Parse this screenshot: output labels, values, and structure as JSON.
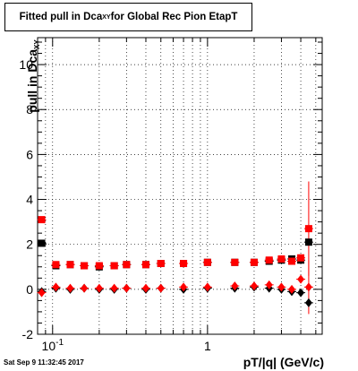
{
  "chart_data": {
    "type": "scatter",
    "title_main": "Fitted pull in Dca",
    "title_sub": "XY",
    "title_rest": " for Global Rec Pion EtapT",
    "ylabel_main": "pull in Dca",
    "ylabel_sub": "XY",
    "xlabel": "pT/|q| (GeV/c)",
    "x_scale": "log",
    "xlim": [
      0.08,
      5.5
    ],
    "ylim": [
      -2,
      11.2
    ],
    "x_tick_labels": [
      {
        "value": 0.1,
        "label": "10",
        "sup": "-1"
      },
      {
        "value": 1,
        "label": "1",
        "sup": ""
      }
    ],
    "y_tick_labels": [
      -2,
      0,
      2,
      4,
      6,
      8,
      10
    ],
    "grid": true,
    "series": [
      {
        "marker": "square",
        "color": "#000000",
        "x": [
          0.085,
          0.105,
          0.13,
          0.16,
          0.2,
          0.25,
          0.3,
          0.4,
          0.5,
          0.7,
          1.0,
          1.5,
          2.0,
          2.5,
          3.0,
          3.5,
          4.0,
          4.5
        ],
        "y": [
          2.05,
          1.05,
          1.1,
          1.05,
          1.0,
          1.05,
          1.1,
          1.1,
          1.15,
          1.15,
          1.2,
          1.2,
          1.2,
          1.25,
          1.3,
          1.35,
          1.3,
          2.1
        ]
      },
      {
        "marker": "square",
        "color": "#ff0000",
        "x": [
          0.085,
          0.105,
          0.13,
          0.16,
          0.2,
          0.25,
          0.3,
          0.4,
          0.5,
          0.7,
          1.0,
          1.5,
          2.0,
          2.5,
          3.0,
          3.5,
          4.0,
          4.5
        ],
        "y": [
          3.1,
          1.1,
          1.1,
          1.05,
          1.05,
          1.05,
          1.1,
          1.1,
          1.15,
          1.15,
          1.2,
          1.2,
          1.2,
          1.3,
          1.35,
          1.25,
          1.4,
          2.7
        ]
      },
      {
        "marker": "diamond",
        "color": "#000000",
        "x": [
          0.085,
          0.105,
          0.13,
          0.16,
          0.2,
          0.25,
          0.3,
          0.4,
          0.5,
          0.7,
          1.0,
          1.5,
          2.0,
          2.5,
          3.0,
          3.5,
          4.0,
          4.5
        ],
        "y": [
          -0.1,
          0.05,
          0.0,
          0.05,
          0.0,
          0.0,
          0.05,
          0.0,
          0.05,
          0.0,
          0.05,
          0.05,
          0.1,
          0.05,
          0.0,
          -0.1,
          -0.15,
          -0.6
        ]
      },
      {
        "marker": "diamond",
        "color": "#ff0000",
        "x": [
          0.085,
          0.105,
          0.13,
          0.16,
          0.2,
          0.25,
          0.3,
          0.4,
          0.5,
          0.7,
          1.0,
          1.5,
          2.0,
          2.5,
          3.0,
          3.5,
          4.0,
          4.5
        ],
        "y": [
          -0.15,
          0.1,
          0.05,
          0.05,
          0.05,
          0.05,
          0.05,
          0.05,
          0.05,
          0.1,
          0.1,
          0.15,
          0.15,
          0.2,
          0.1,
          0.0,
          0.45,
          0.1
        ]
      }
    ],
    "error_bars": [
      {
        "x": 4.5,
        "y": 2.7,
        "yerr": 2.1,
        "color": "#ff0000"
      },
      {
        "x": 4.5,
        "y": 0.1,
        "yerr": 1.2,
        "color": "#ff0000"
      }
    ],
    "timestamp": "Sat Sep  9 11:32:45 2017"
  }
}
